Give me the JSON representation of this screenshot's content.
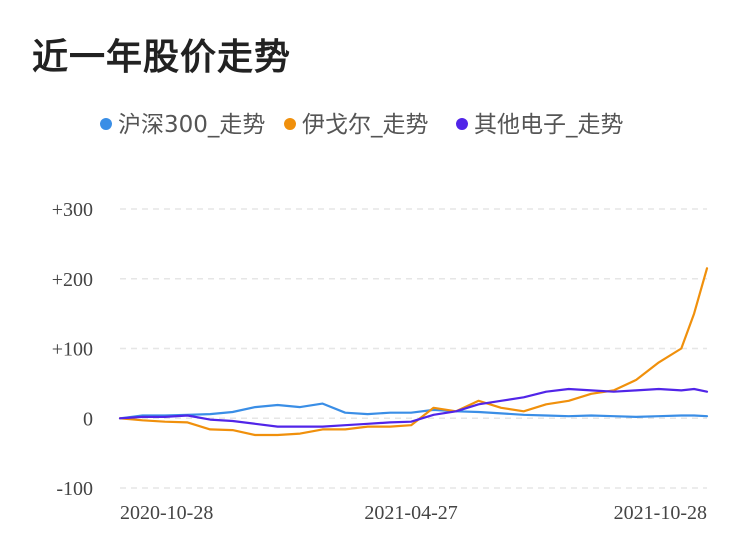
{
  "title": "近一年股价走势",
  "chart_data": {
    "type": "line",
    "title": "近一年股价走势",
    "xlabel": "",
    "ylabel": "",
    "x_ticks": [
      "2020-10-28",
      "2021-04-27",
      "2021-10-28"
    ],
    "y_ticks": [
      "+300",
      "+200",
      "+100",
      "0",
      "-100"
    ],
    "y_tick_values": [
      300,
      200,
      100,
      0,
      -100
    ],
    "ylim": [
      -100,
      300
    ],
    "grid": true,
    "legend_position": "top",
    "x": [
      "2020-10-28",
      "2020-11-11",
      "2020-11-25",
      "2020-12-09",
      "2020-12-23",
      "2021-01-06",
      "2021-01-20",
      "2021-02-03",
      "2021-02-17",
      "2021-03-03",
      "2021-03-17",
      "2021-03-31",
      "2021-04-14",
      "2021-04-27",
      "2021-05-11",
      "2021-05-25",
      "2021-06-08",
      "2021-06-22",
      "2021-07-06",
      "2021-07-20",
      "2021-08-03",
      "2021-08-17",
      "2021-08-31",
      "2021-09-14",
      "2021-09-28",
      "2021-10-12",
      "2021-10-20",
      "2021-10-28"
    ],
    "series": [
      {
        "name": "沪深300_走势",
        "color": "#3a8ee6",
        "values": [
          0,
          4,
          4,
          5,
          6,
          9,
          16,
          19,
          16,
          21,
          8,
          6,
          8,
          8,
          12,
          10,
          9,
          7,
          5,
          4,
          3,
          4,
          3,
          2,
          3,
          4,
          4,
          3
        ]
      },
      {
        "name": "伊戈尔_走势",
        "color": "#f0900c",
        "values": [
          0,
          -3,
          -5,
          -6,
          -16,
          -17,
          -24,
          -24,
          -22,
          -16,
          -16,
          -12,
          -12,
          -10,
          15,
          10,
          25,
          15,
          10,
          20,
          25,
          35,
          40,
          55,
          80,
          100,
          150,
          215
        ]
      },
      {
        "name": "其他电子_走势",
        "color": "#5125e8",
        "values": [
          0,
          2,
          2,
          4,
          -2,
          -4,
          -8,
          -12,
          -12,
          -12,
          -10,
          -8,
          -6,
          -5,
          5,
          10,
          20,
          25,
          30,
          38,
          42,
          40,
          38,
          40,
          42,
          40,
          42,
          38
        ]
      }
    ]
  }
}
